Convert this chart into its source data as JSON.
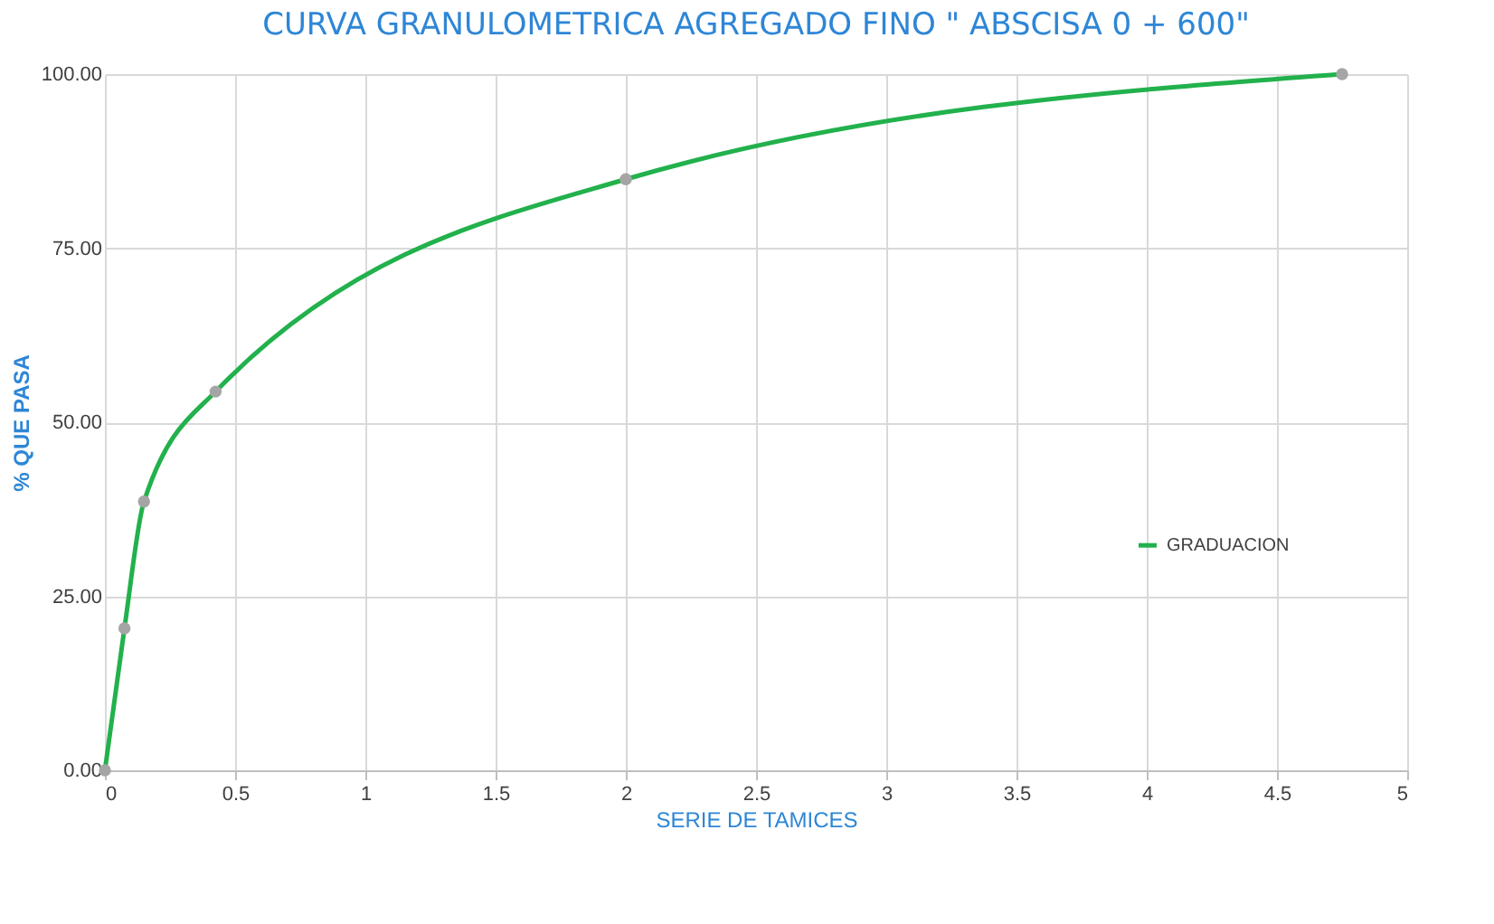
{
  "chart_data": {
    "type": "line",
    "title": "CURVA GRANULOMETRICA AGREGADO FINO \" ABSCISA 0 + 600\"",
    "xlabel": "SERIE DE TAMICES",
    "ylabel": "% QUE PASA",
    "x": [
      0,
      0.075,
      0.15,
      0.425,
      2.0,
      4.75
    ],
    "series": [
      {
        "name": "GRADUACION",
        "color": "#22b14c",
        "values": [
          0,
          20.4,
          38.6,
          54.4,
          84.9,
          100
        ]
      }
    ],
    "xlim": [
      0,
      5
    ],
    "xticks": [
      0,
      0.5,
      1,
      1.5,
      2,
      2.5,
      3,
      3.5,
      4,
      4.5,
      5
    ],
    "ylim": [
      0,
      100
    ],
    "yticks": [
      {
        "value": 0,
        "label": "0.00"
      },
      {
        "value": 25,
        "label": "25.00"
      },
      {
        "value": 50,
        "label": "50.00"
      },
      {
        "value": 75,
        "label": "75.00"
      },
      {
        "value": 100,
        "label": "100.00"
      }
    ],
    "grid": true,
    "legend": "right",
    "marker": "circle"
  }
}
